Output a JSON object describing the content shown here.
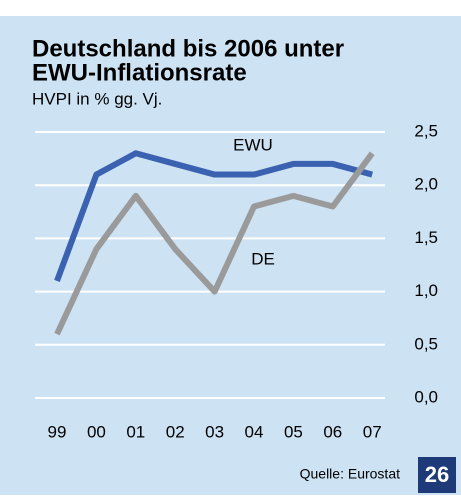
{
  "chart_data": {
    "type": "line",
    "title_lines": [
      "Deutschland bis 2006 unter",
      "EWU-Inflationsrate"
    ],
    "subtitle": "HVPI in % gg. Vj.",
    "categories": [
      "99",
      "00",
      "01",
      "02",
      "03",
      "04",
      "05",
      "06",
      "07"
    ],
    "series": [
      {
        "name": "EWU",
        "color": "#3a62b0",
        "values": [
          1.1,
          2.1,
          2.3,
          2.2,
          2.1,
          2.1,
          2.2,
          2.2,
          2.1
        ]
      },
      {
        "name": "DE",
        "color": "#9a9a9a",
        "values": [
          0.6,
          1.4,
          1.9,
          1.4,
          1.0,
          1.8,
          1.9,
          1.8,
          2.3
        ]
      }
    ],
    "ylim": [
      0,
      2.5
    ],
    "yticks": [
      {
        "value": 0,
        "label": "0,0"
      },
      {
        "value": 0.5,
        "label": "0,5"
      },
      {
        "value": 1,
        "label": "1,0"
      },
      {
        "value": 1.5,
        "label": "1,5"
      },
      {
        "value": 2,
        "label": "2,0"
      },
      {
        "value": 2.5,
        "label": "2,5"
      }
    ],
    "grid": true,
    "source": "Quelle: Eurostat",
    "page_number": "26"
  }
}
